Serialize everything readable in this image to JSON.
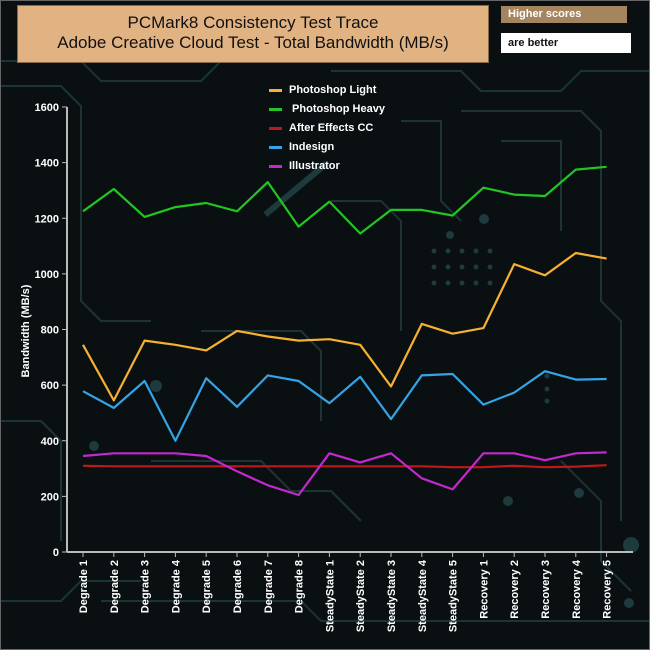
{
  "header": {
    "title_line1": "PCMark8 Consistency Test Trace",
    "title_line2": "Adobe Creative Cloud Test - Total Bandwidth (MB/s)",
    "note_line1": "Higher scores",
    "note_line2": "are better"
  },
  "chart_data": {
    "type": "line",
    "title": "PCMark8 Consistency Test Trace - Adobe Creative Cloud Test - Total Bandwidth (MB/s)",
    "xlabel": "",
    "ylabel": "Bandwidth (MB/s)",
    "ylim": [
      0,
      1600
    ],
    "yticks": [
      0,
      200,
      400,
      600,
      800,
      1000,
      1200,
      1400,
      1600
    ],
    "grid": false,
    "legend_position": "top-center",
    "categories": [
      "Degrade 1",
      "Degrade 2",
      "Degrade 3",
      "Degrade 4",
      "Degrade 5",
      "Degrade 6",
      "Degrade 7",
      "Degrade 8",
      "SteadyState 1",
      "SteadyState 2",
      "SteadyState 3",
      "SteadyState 4",
      "SteadyState 5",
      "Recovery 1",
      "Recovery 2",
      "Recovery 3",
      "Recovery 4",
      "Recovery 5"
    ],
    "series": [
      {
        "name": "Photoshop Light",
        "label": "Photoshop Light",
        "color": "#f6b133",
        "values": [
          745,
          545,
          760,
          745,
          725,
          795,
          775,
          760,
          765,
          745,
          595,
          820,
          785,
          805,
          1035,
          995,
          1075,
          1055
        ]
      },
      {
        "name": "Photoshop Heavy",
        "label": " Photoshop Heavy",
        "color": "#22c522",
        "values": [
          1225,
          1305,
          1205,
          1240,
          1255,
          1225,
          1330,
          1170,
          1260,
          1145,
          1230,
          1230,
          1210,
          1310,
          1285,
          1280,
          1375,
          1385
        ]
      },
      {
        "name": "After Effects CC",
        "label": "After Effects CC",
        "color": "#c0181a",
        "values": [
          310,
          308,
          308,
          308,
          308,
          308,
          308,
          308,
          308,
          308,
          308,
          308,
          305,
          305,
          310,
          305,
          307,
          312
        ]
      },
      {
        "name": "Indesign",
        "label": "Indesign",
        "color": "#35a4e6",
        "values": [
          578,
          518,
          615,
          400,
          625,
          522,
          635,
          615,
          535,
          630,
          478,
          635,
          640,
          530,
          573,
          650,
          620,
          622
        ]
      },
      {
        "name": "Illustrator",
        "label": "Illustrator",
        "color": "#c428cf",
        "values": [
          345,
          355,
          355,
          355,
          345,
          290,
          240,
          205,
          355,
          322,
          355,
          265,
          225,
          355,
          355,
          330,
          355,
          358
        ]
      }
    ]
  }
}
